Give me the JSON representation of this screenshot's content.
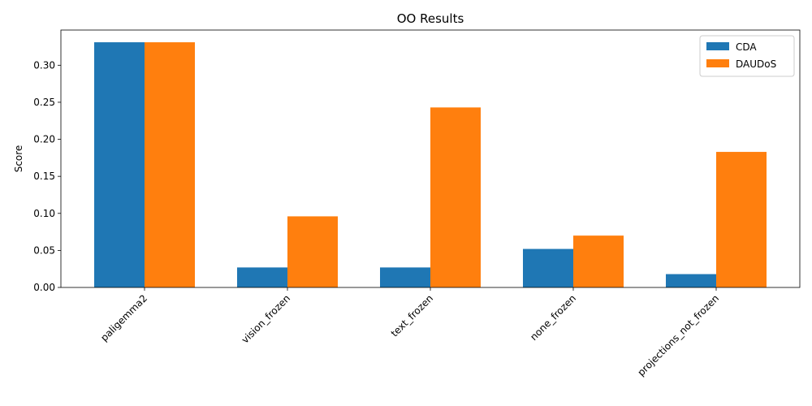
{
  "chart_data": {
    "type": "bar",
    "title": "OO Results",
    "xlabel": "",
    "ylabel": "Score",
    "categories": [
      "paligemma2",
      "vision_frozen",
      "text_frozen",
      "none_frozen",
      "projections_not_frozen"
    ],
    "series": [
      {
        "name": "CDA",
        "color": "#1f77b4",
        "values": [
          0.331,
          0.027,
          0.027,
          0.052,
          0.018
        ]
      },
      {
        "name": "DAUDoS",
        "color": "#ff7f0e",
        "values": [
          0.331,
          0.096,
          0.243,
          0.07,
          0.183
        ]
      }
    ],
    "ylim": [
      0,
      0.3475
    ],
    "yticks": [
      0.0,
      0.05,
      0.1,
      0.15,
      0.2,
      0.25,
      0.3
    ],
    "ytick_labels": [
      "0.00",
      "0.05",
      "0.10",
      "0.15",
      "0.20",
      "0.25",
      "0.30"
    ],
    "grid": false,
    "legend_position": "top-right"
  }
}
